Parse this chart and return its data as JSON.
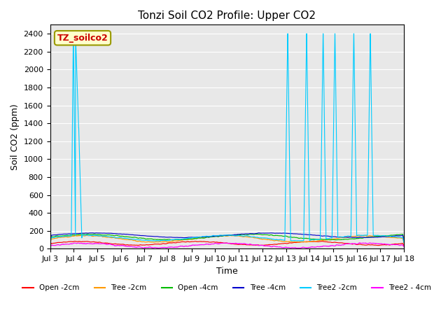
{
  "title": "Tonzi Soil CO2 Profile: Upper CO2",
  "ylabel": "Soil CO2 (ppm)",
  "xlabel": "Time",
  "ylim": [
    0,
    2500
  ],
  "xlim": [
    0,
    15
  ],
  "tick_labels": [
    "Jul 3",
    "Jul 4",
    "Jul 5",
    "Jul 6",
    "Jul 7",
    "Jul 8",
    "Jul 9",
    "Jul 10",
    "Jul 11",
    "Jul 12",
    "Jul 13",
    "Jul 14",
    "Jul 15",
    "Jul 16",
    "Jul 17",
    "Jul 18"
  ],
  "tick_positions": [
    0,
    1,
    2,
    3,
    4,
    5,
    6,
    7,
    8,
    9,
    10,
    11,
    12,
    13,
    14,
    15
  ],
  "background_color": "#e8e8e8",
  "legend_label": "TZ_soilco2",
  "legend_box_color": "#ffffcc",
  "legend_text_color": "#cc0000",
  "yticks": [
    0,
    200,
    400,
    600,
    800,
    1000,
    1200,
    1400,
    1600,
    1800,
    2000,
    2200,
    2400
  ],
  "series": [
    {
      "label": "Open -2cm",
      "color": "#ff0000"
    },
    {
      "label": "Tree -2cm",
      "color": "#ff9900"
    },
    {
      "label": "Open -4cm",
      "color": "#00bb00"
    },
    {
      "label": "Tree -4cm",
      "color": "#0000cc"
    },
    {
      "label": "Tree2 -2cm",
      "color": "#00ccff"
    },
    {
      "label": "Tree2 - 4cm",
      "color": "#ff00ff"
    }
  ]
}
